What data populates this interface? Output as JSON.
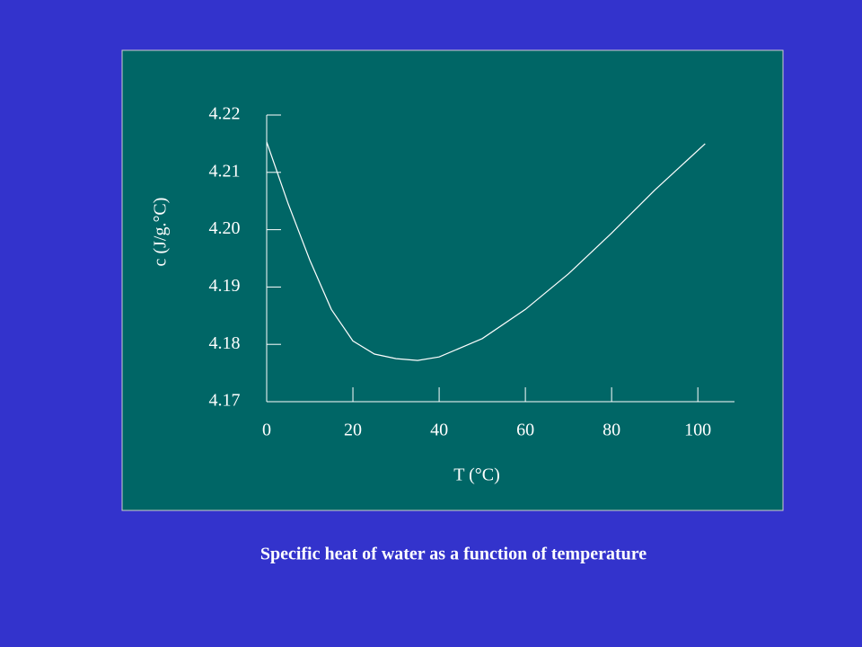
{
  "chart_data": {
    "type": "line",
    "title": "Specific heat of water as a function of temperature",
    "xlabel": "T (°C)",
    "ylabel": "c (J/g.°C)",
    "x": [
      0,
      5,
      10,
      15,
      20,
      25,
      30,
      35,
      40,
      50,
      60,
      70,
      80,
      90,
      101.7
    ],
    "values": [
      4.2153,
      4.2045,
      4.1947,
      4.1861,
      4.1806,
      4.1783,
      4.1775,
      4.1772,
      4.1778,
      4.181,
      4.1861,
      4.1923,
      4.1994,
      4.2069,
      4.215
    ],
    "color": "#ffffff",
    "xlim": [
      0,
      108.5
    ],
    "ylim": [
      4.17,
      4.22
    ],
    "xticks": [
      0,
      20,
      40,
      60,
      80,
      100
    ],
    "yticks": [
      4.17,
      4.18,
      4.19,
      {
        "value": 4.2,
        "label": "4.20"
      },
      4.21,
      4.22
    ]
  }
}
